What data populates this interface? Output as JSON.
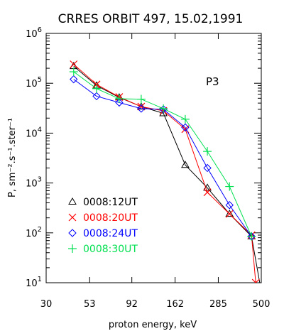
{
  "chart_data": {
    "type": "line",
    "title": "CRRES ORBIT 497, 15.02,1991",
    "xlabel": "proton energy, keV",
    "ylabel": "P, sm⁻².s⁻¹.ster⁻¹",
    "panel_label": "P3",
    "x_scale": "log",
    "y_scale": "log",
    "xlim": [
      30,
      500
    ],
    "ylim": [
      10,
      1000000
    ],
    "x_ticks": [
      {
        "value": 30,
        "label": "30"
      },
      {
        "value": 53,
        "label": "53"
      },
      {
        "value": 92,
        "label": "92"
      },
      {
        "value": 162,
        "label": "162"
      },
      {
        "value": 285,
        "label": "285"
      },
      {
        "value": 500,
        "label": "500"
      }
    ],
    "y_ticks": [
      {
        "value": 10,
        "base": "10",
        "exp": "1"
      },
      {
        "value": 100,
        "base": "10",
        "exp": "2"
      },
      {
        "value": 1000,
        "base": "10",
        "exp": "3"
      },
      {
        "value": 10000,
        "base": "10",
        "exp": "4"
      },
      {
        "value": 100000,
        "base": "10",
        "exp": "5"
      },
      {
        "value": 1000000,
        "base": "10",
        "exp": "6"
      }
    ],
    "grid": false,
    "legend_position": "lower-left",
    "series": [
      {
        "name": "0008:12UT",
        "color": "#000000",
        "marker": "triangle",
        "x": [
          43,
          58,
          78,
          104,
          139,
          185,
          247,
          330,
          440
        ],
        "y": [
          220000,
          90000,
          52000,
          34000,
          25000,
          2300,
          800,
          240,
          85
        ],
        "extra_segment_x": [
          440,
          490
        ],
        "extra_segment_y": [
          85,
          10
        ]
      },
      {
        "name": "0008:20UT",
        "color": "#ff0000",
        "marker": "x",
        "x": [
          43,
          58,
          78,
          104,
          139,
          185,
          247,
          330,
          440,
          465
        ],
        "y": [
          240000,
          95000,
          53000,
          34000,
          28000,
          12000,
          650,
          240,
          90,
          10
        ]
      },
      {
        "name": "0008:24UT",
        "color": "#0000ff",
        "marker": "diamond",
        "x": [
          43,
          58,
          78,
          104,
          139,
          185,
          247,
          330,
          440
        ],
        "y": [
          120000,
          55000,
          41000,
          31000,
          30000,
          13000,
          2000,
          360,
          85
        ]
      },
      {
        "name": "0008:30UT",
        "color": "#00e050",
        "marker": "plus",
        "x": [
          43,
          58,
          78,
          104,
          139,
          185,
          247,
          330,
          440
        ],
        "y": [
          170000,
          78000,
          49000,
          48000,
          31000,
          19000,
          4300,
          850,
          85
        ]
      }
    ]
  }
}
